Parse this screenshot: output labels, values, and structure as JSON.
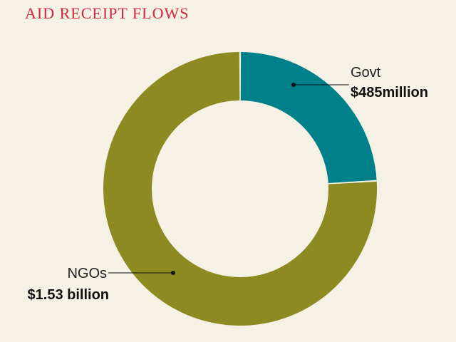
{
  "title": "AID RECEIPT FLOWS",
  "chart_data": {
    "type": "pie",
    "title": "AID RECEIPT FLOWS",
    "donut": true,
    "unit": "USD",
    "slices": [
      {
        "name": "Govt",
        "value": 485,
        "display": "$485million",
        "color": "#00808a"
      },
      {
        "name": "NGOs",
        "value": 1530,
        "display": "$1.53 billion",
        "color": "#8e8a22"
      }
    ],
    "start_position": "12 o'clock",
    "direction": "clockwise"
  }
}
